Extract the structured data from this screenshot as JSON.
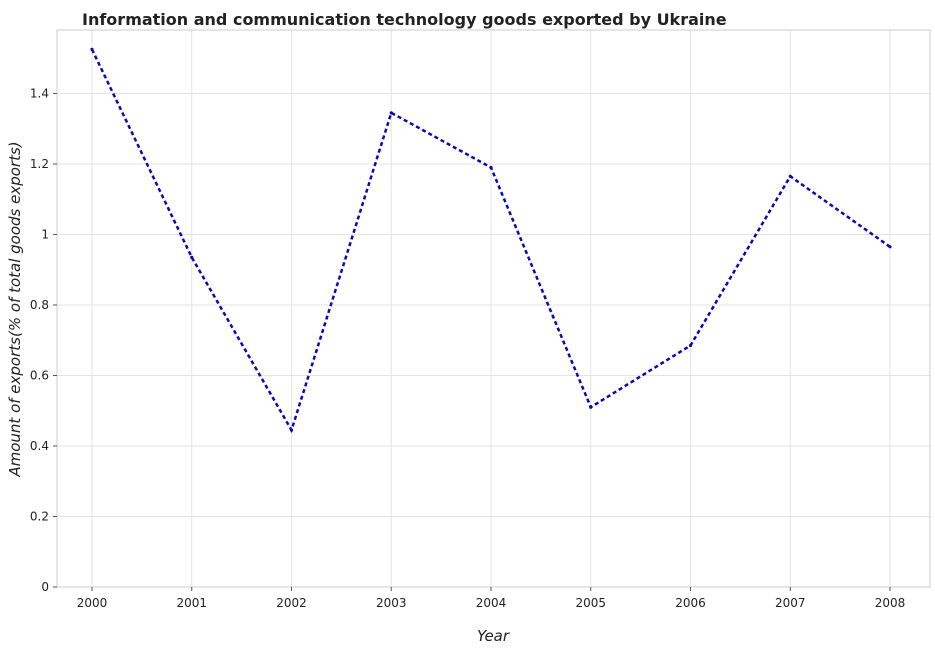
{
  "chart_data": {
    "type": "line",
    "title": "Information and communication technology goods exported by Ukraine",
    "xlabel": "Year",
    "ylabel": "Amount of exports(% of total goods exports)",
    "categories": [
      "2000",
      "2001",
      "2002",
      "2003",
      "2004",
      "2005",
      "2006",
      "2007",
      "2008"
    ],
    "series": [
      {
        "values": [
          1.525,
          0.935,
          0.445,
          1.345,
          1.19,
          0.51,
          0.685,
          1.165,
          0.965
        ],
        "color": "#0a0ab0"
      }
    ],
    "ylim": [
      0,
      1.58
    ],
    "yticks": [
      0,
      0.2,
      0.4,
      0.6,
      0.8,
      1,
      1.2,
      1.4
    ],
    "ytick_labels": [
      "0",
      "0.2",
      "0.4",
      "0.6",
      "0.8",
      "1",
      "1.2",
      "1.4"
    ],
    "grid": true,
    "legend": "none"
  }
}
